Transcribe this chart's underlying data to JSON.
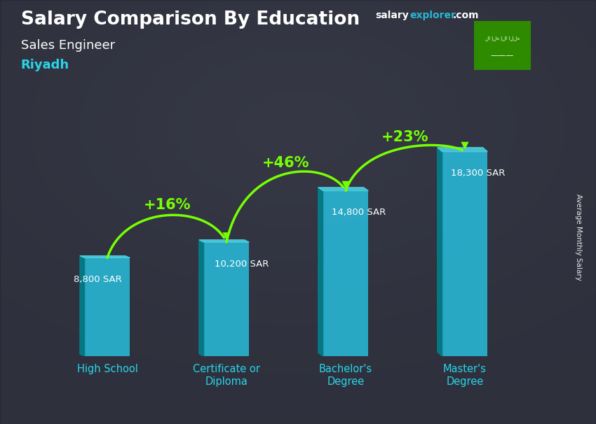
{
  "title_main": "Salary Comparison By Education",
  "subtitle_job": "Sales Engineer",
  "subtitle_city": "Riyadh",
  "ylabel": "Average Monthly Salary",
  "categories": [
    "High School",
    "Certificate or\nDiploma",
    "Bachelor's\nDegree",
    "Master's\nDegree"
  ],
  "values": [
    8800,
    10200,
    14800,
    18300
  ],
  "labels": [
    "8,800 SAR",
    "10,200 SAR",
    "14,800 SAR",
    "18,300 SAR"
  ],
  "pct_labels": [
    "+16%",
    "+46%",
    "+23%"
  ],
  "bar_color_main": "#29b6d4",
  "bar_color_left": "#00838f",
  "bar_color_top": "#4dd0e1",
  "arrow_color": "#76ff03",
  "title_color": "#ffffff",
  "subtitle_job_color": "#ffffff",
  "subtitle_city_color": "#29d4e8",
  "label_color": "#ffffff",
  "pct_color": "#76ff03",
  "bg_color": "#404040",
  "ylim": [
    0,
    22000
  ],
  "figsize": [
    8.5,
    6.06
  ],
  "dpi": 100,
  "salary_color_white": "#ffffff",
  "salary_color_cyan": "#29b6d4",
  "flag_green": "#2e8b00"
}
